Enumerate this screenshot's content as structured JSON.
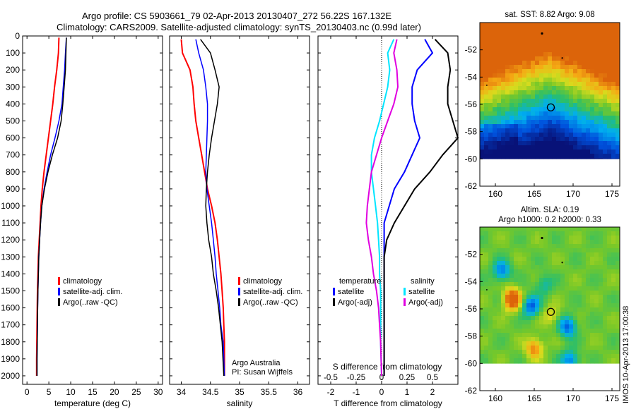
{
  "header": {
    "title_line1": "Argo profile: CS 5903661_79 02-Apr-2013 20130407_272 56.22S 167.132E",
    "title_line2": "Climatology: CARS2009. Satellite-adjusted climatology: synTS_20130403.nc (0.99d later)"
  },
  "side_label": "IMOS 10-Apr-2013 17:00:38",
  "credits": {
    "line1": "Argo Australia",
    "line2": "PI: Susan Wijffels"
  },
  "colors": {
    "climatology": "#ff0000",
    "satellite": "#0000ff",
    "argo": "#000000",
    "satellite_salinity": "#00e5ff",
    "argo_salinity": "#e000e0"
  },
  "chart_data": [
    {
      "type": "line",
      "id": "temperature",
      "xlabel": "temperature (deg C)",
      "ylabel": "",
      "xlim": [
        -1,
        31
      ],
      "ylim": [
        2050,
        0
      ],
      "xticks": [
        "0",
        "5",
        "10",
        "15",
        "20",
        "25",
        "30"
      ],
      "yticks": [
        "0",
        "100",
        "200",
        "300",
        "400",
        "500",
        "600",
        "700",
        "800",
        "900",
        "1000",
        "1100",
        "1200",
        "1300",
        "1400",
        "1500",
        "1600",
        "1700",
        "1800",
        "1900",
        "2000"
      ],
      "legend": [
        "climatology",
        "satellite-adj. clim.",
        "Argo(..raw -QC)"
      ],
      "series": [
        {
          "name": "climatology",
          "x": [
            7.3,
            7.2,
            6.8,
            6.3,
            5.9,
            5.4,
            4.9,
            4.4,
            3.9,
            3.5,
            3.2,
            3.0,
            2.8,
            2.6,
            2.5,
            2.4,
            2.35,
            2.3,
            2.25,
            2.2,
            2.2
          ],
          "y": [
            10,
            100,
            200,
            300,
            400,
            500,
            600,
            700,
            800,
            900,
            1000,
            1100,
            1200,
            1300,
            1400,
            1500,
            1600,
            1700,
            1800,
            1900,
            2000
          ]
        },
        {
          "name": "satellite-adj. clim.",
          "x": [
            9.0,
            8.8,
            8.6,
            8.3,
            8.0,
            7.3,
            6.4,
            5.4,
            4.6,
            3.9,
            3.4,
            3.1,
            2.9,
            2.7,
            2.6,
            2.5,
            2.45,
            2.4,
            2.35,
            2.3,
            2.3
          ],
          "y": [
            10,
            100,
            200,
            300,
            400,
            500,
            600,
            700,
            800,
            900,
            1000,
            1100,
            1200,
            1300,
            1400,
            1500,
            1600,
            1700,
            1800,
            1900,
            2000
          ]
        },
        {
          "name": "Argo(..raw -QC)",
          "x": [
            9.0,
            8.9,
            8.8,
            8.5,
            8.2,
            7.8,
            7.0,
            5.8,
            4.8,
            4.0,
            3.4,
            3.1,
            2.9,
            2.7,
            2.6,
            2.5,
            2.45,
            2.4,
            2.35,
            2.3,
            2.3
          ],
          "y": [
            10,
            100,
            200,
            300,
            400,
            500,
            600,
            700,
            800,
            900,
            1000,
            1100,
            1200,
            1300,
            1400,
            1500,
            1600,
            1700,
            1800,
            1900,
            2000
          ]
        }
      ]
    },
    {
      "type": "line",
      "id": "salinity",
      "xlabel": "salinity",
      "ylabel": "",
      "xlim": [
        33.8,
        36.2
      ],
      "ylim": [
        2050,
        0
      ],
      "xticks": [
        "34",
        "34.5",
        "35",
        "35.5",
        "36"
      ],
      "legend": [
        "climatology",
        "satellite-adj. clim.",
        "Argo(..raw -QC)"
      ],
      "series": [
        {
          "name": "climatology",
          "x": [
            34.0,
            34.02,
            34.15,
            34.2,
            34.22,
            34.25,
            34.3,
            34.35,
            34.4,
            34.45,
            34.52,
            34.58,
            34.62,
            34.65,
            34.68,
            34.7,
            34.72,
            34.73,
            34.74,
            34.74
          ],
          "y": [
            20,
            100,
            200,
            300,
            400,
            500,
            600,
            700,
            800,
            900,
            1000,
            1100,
            1200,
            1300,
            1400,
            1500,
            1600,
            1700,
            1800,
            2000
          ]
        },
        {
          "name": "satellite-adj. clim.",
          "x": [
            34.25,
            34.3,
            34.38,
            34.42,
            34.45,
            34.45,
            34.44,
            34.43,
            34.42,
            34.44,
            34.48,
            34.52,
            34.55,
            34.58,
            34.6,
            34.63,
            34.66,
            34.68,
            34.72,
            34.74
          ],
          "y": [
            20,
            100,
            200,
            300,
            400,
            500,
            600,
            700,
            800,
            900,
            1000,
            1100,
            1200,
            1300,
            1400,
            1500,
            1600,
            1700,
            1800,
            2000
          ]
        },
        {
          "name": "Argo(..raw -QC)",
          "x": [
            34.33,
            34.5,
            34.58,
            34.65,
            34.62,
            34.57,
            34.52,
            34.48,
            34.45,
            34.43,
            34.42,
            34.44,
            34.47,
            34.52,
            34.55,
            34.6,
            34.64,
            34.67,
            34.7,
            34.73
          ],
          "y": [
            20,
            100,
            200,
            300,
            400,
            500,
            600,
            700,
            800,
            900,
            1000,
            1100,
            1200,
            1300,
            1400,
            1500,
            1600,
            1700,
            1800,
            2000
          ]
        }
      ]
    },
    {
      "type": "line",
      "id": "difference",
      "xlabel": "T difference from climatology",
      "x2label": "S difference from climatology",
      "xlim": [
        -2.5,
        3.0
      ],
      "x2lim": [
        -0.625,
        0.75
      ],
      "ylim": [
        2050,
        0
      ],
      "xticks": [
        "-2",
        "-1",
        "0",
        "1",
        "2"
      ],
      "x2ticks": [
        "-0.5",
        "-0.25",
        "0",
        "0.25",
        "0.5"
      ],
      "zero_line": true,
      "legend_left_title": "temperature",
      "legend_right_title": "salinity",
      "legend_left": [
        "satellite",
        "Argo(-adj)"
      ],
      "legend_right": [
        "satellite",
        "Argo(-adj)"
      ],
      "series": [
        {
          "name": "temperature satellite",
          "x": [
            1.7,
            2.0,
            1.4,
            1.2,
            1.2,
            1.3,
            1.5,
            1.2,
            0.9,
            0.5,
            0.3,
            0.1,
            0.1,
            0.1,
            0.1,
            0.1,
            0.1,
            0.1,
            0.1,
            0.1
          ],
          "y": [
            20,
            100,
            200,
            300,
            400,
            500,
            600,
            700,
            800,
            900,
            1000,
            1100,
            1200,
            1300,
            1400,
            1500,
            1600,
            1700,
            1800,
            2000
          ]
        },
        {
          "name": "temperature Argo(-adj)",
          "x": [
            2.1,
            2.6,
            2.7,
            2.6,
            2.6,
            2.8,
            3.0,
            2.4,
            1.9,
            1.3,
            0.9,
            0.5,
            0.2,
            0.1,
            0.1,
            0.1,
            0.1,
            0.1,
            0.1,
            0.1
          ],
          "y": [
            20,
            100,
            200,
            300,
            400,
            500,
            600,
            700,
            800,
            900,
            1000,
            1100,
            1200,
            1300,
            1400,
            1500,
            1600,
            1700,
            1800,
            2000
          ]
        },
        {
          "name": "salinity satellite",
          "x": [
            0.12,
            0.06,
            0.08,
            0.06,
            0.02,
            -0.02,
            -0.07,
            -0.1,
            -0.1,
            -0.08,
            -0.06,
            -0.04,
            -0.03,
            -0.02,
            -0.02,
            -0.01,
            -0.01,
            -0.01,
            -0.01,
            0.0
          ],
          "y": [
            20,
            100,
            200,
            300,
            400,
            500,
            600,
            700,
            800,
            900,
            1000,
            1100,
            1200,
            1300,
            1400,
            1500,
            1600,
            1700,
            1800,
            2000
          ]
        },
        {
          "name": "salinity Argo(-adj)",
          "x": [
            0.15,
            0.12,
            0.15,
            0.16,
            0.12,
            0.06,
            0.0,
            -0.05,
            -0.1,
            -0.12,
            -0.14,
            -0.15,
            -0.13,
            -0.1,
            -0.08,
            -0.05,
            -0.03,
            -0.02,
            -0.01,
            0.0
          ],
          "y": [
            20,
            100,
            200,
            300,
            400,
            500,
            600,
            700,
            800,
            900,
            1000,
            1100,
            1200,
            1300,
            1400,
            1500,
            1600,
            1700,
            1800,
            2000
          ]
        }
      ]
    },
    {
      "type": "heatmap",
      "id": "sst-map",
      "title": "sat. SST: 8.82  Argo: 9.08",
      "xlim": [
        158,
        176
      ],
      "ylim": [
        -62,
        -50
      ],
      "data_ylim": [
        -60,
        -50
      ],
      "xticks": [
        "160",
        "165",
        "170",
        "175"
      ],
      "yticks": [
        "-52",
        "-54",
        "-56",
        "-58",
        "-60",
        "-62"
      ],
      "float_position": [
        167.132,
        -56.22
      ]
    },
    {
      "type": "heatmap",
      "id": "sla-map",
      "title_line1": "Altim. SLA: 0.19",
      "title_line2": "Argo h1000: 0.2 h2000: 0.33",
      "xlim": [
        158,
        176
      ],
      "ylim": [
        -62,
        -50
      ],
      "data_ylim": [
        -60,
        -50
      ],
      "xticks": [
        "160",
        "165",
        "170",
        "175"
      ],
      "yticks": [
        "-52",
        "-54",
        "-56",
        "-58",
        "-60",
        "-62"
      ],
      "float_position": [
        167.132,
        -56.22
      ],
      "eddies": [
        {
          "lon": 162.2,
          "lat": -55.3,
          "value": 0.5
        },
        {
          "lon": 160.8,
          "lat": -53.2,
          "value": -0.3
        },
        {
          "lon": 164.6,
          "lat": -55.8,
          "value": -0.35
        },
        {
          "lon": 169.3,
          "lat": -57.3,
          "value": -0.35
        },
        {
          "lon": 166.3,
          "lat": -54.2,
          "value": -0.15
        },
        {
          "lon": 165.0,
          "lat": -58.9,
          "value": 0.3
        },
        {
          "lon": 169.6,
          "lat": -59.8,
          "value": -0.3
        },
        {
          "lon": 167.2,
          "lat": -56.5,
          "value": 0.15
        }
      ]
    }
  ]
}
